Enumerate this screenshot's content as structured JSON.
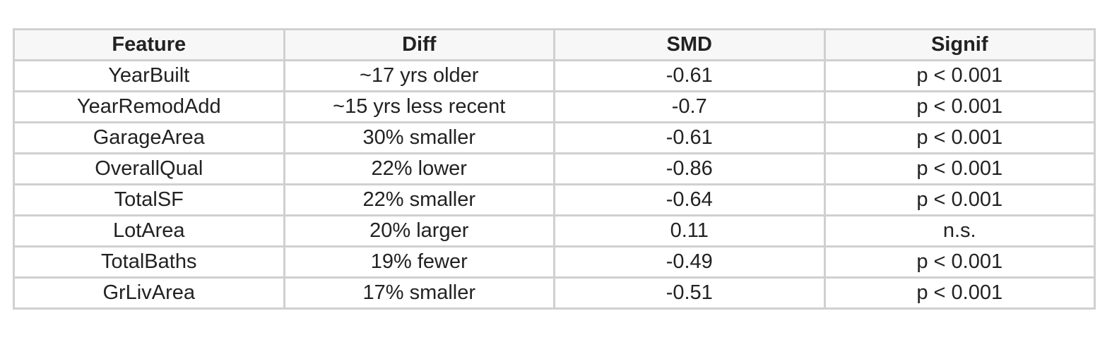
{
  "table": {
    "headers": [
      "Feature",
      "Diff",
      "SMD",
      "Signif"
    ],
    "rows": [
      [
        "YearBuilt",
        "~17 yrs older",
        "-0.61",
        "p < 0.001"
      ],
      [
        "YearRemodAdd",
        "~15 yrs less recent",
        "-0.7",
        "p < 0.001"
      ],
      [
        "GarageArea",
        "30% smaller",
        "-0.61",
        "p < 0.001"
      ],
      [
        "OverallQual",
        "22% lower",
        "-0.86",
        "p < 0.001"
      ],
      [
        "TotalSF",
        "22% smaller",
        "-0.64",
        "p < 0.001"
      ],
      [
        "LotArea",
        "20% larger",
        "0.11",
        "n.s."
      ],
      [
        "TotalBaths",
        "19% fewer",
        "-0.49",
        "p < 0.001"
      ],
      [
        "GrLivArea",
        "17% smaller",
        "-0.51",
        "p < 0.001"
      ]
    ]
  }
}
